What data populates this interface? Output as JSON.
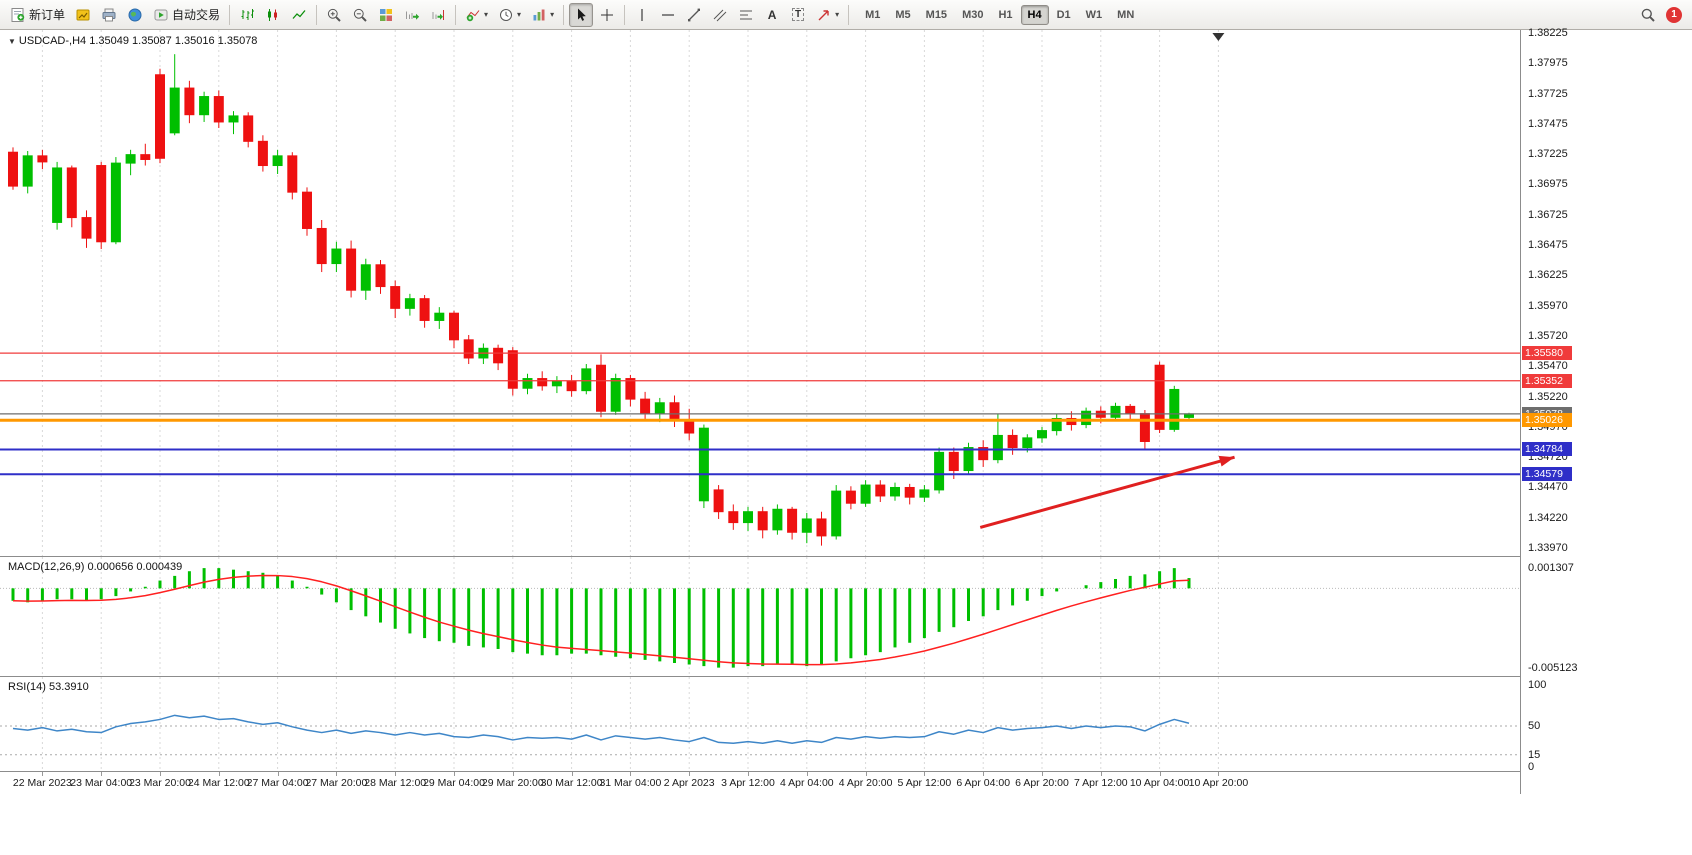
{
  "toolbar": {
    "new_order": "新订单",
    "auto_trading": "自动交易",
    "text_tool": "A",
    "label_tool": "T",
    "timeframes": [
      "M1",
      "M5",
      "M15",
      "M30",
      "H1",
      "H4",
      "D1",
      "W1",
      "MN"
    ],
    "active_timeframe": "H4",
    "notification_count": "1"
  },
  "chart": {
    "symbol_info": "USDCAD-,H4 1.35049 1.35087 1.35016 1.35078",
    "dropdown_glyph": "▼",
    "macd_label": "MACD(12,26,9) 0.000656 0.000439",
    "rsi_label": "RSI(14) 53.3910"
  },
  "chart_data": {
    "type": "candlestick",
    "symbol": "USDCAD",
    "timeframe": "H4",
    "current_ohlc": {
      "open": 1.35049,
      "high": 1.35087,
      "low": 1.35016,
      "close": 1.35078
    },
    "price_axis": {
      "top_price": 1.38225,
      "bottom_price": 1.3397,
      "ticks": [
        "1.38225",
        "1.37975",
        "1.37725",
        "1.37475",
        "1.37225",
        "1.36975",
        "1.36725",
        "1.36475",
        "1.36225",
        "1.35970",
        "1.35720",
        "1.35470",
        "1.35220",
        "1.34970",
        "1.34720",
        "1.34470",
        "1.34220",
        "1.33970"
      ]
    },
    "time_labels": [
      "22 Mar 2023",
      "23 Mar 04:00",
      "23 Mar 20:00",
      "24 Mar 12:00",
      "27 Mar 04:00",
      "27 Mar 20:00",
      "28 Mar 12:00",
      "29 Mar 04:00",
      "29 Mar 20:00",
      "30 Mar 12:00",
      "31 Mar 04:00",
      "2 Apr 2023",
      "3 Apr 12:00",
      "4 Apr 04:00",
      "4 Apr 20:00",
      "5 Apr 12:00",
      "6 Apr 04:00",
      "6 Apr 20:00",
      "7 Apr 12:00",
      "10 Apr 04:00",
      "10 Apr 20:00"
    ],
    "bars_per_label": 4,
    "first_label_bar": 2,
    "scroll_marker_bar": 82,
    "candles": [
      [
        1.3724,
        1.3728,
        1.3693,
        1.3696
      ],
      [
        1.3696,
        1.3725,
        1.369,
        1.3721
      ],
      [
        1.3721,
        1.3726,
        1.371,
        1.3716
      ],
      [
        1.3666,
        1.3716,
        1.366,
        1.3711
      ],
      [
        1.3711,
        1.3713,
        1.3662,
        1.367
      ],
      [
        1.367,
        1.3676,
        1.3645,
        1.3653
      ],
      [
        1.3713,
        1.3716,
        1.3644,
        1.365
      ],
      [
        1.365,
        1.372,
        1.3648,
        1.3715
      ],
      [
        1.3715,
        1.3726,
        1.3705,
        1.3722
      ],
      [
        1.3722,
        1.3731,
        1.3713,
        1.3718
      ],
      [
        1.3788,
        1.3793,
        1.3715,
        1.3719
      ],
      [
        1.374,
        1.3805,
        1.3738,
        1.3777
      ],
      [
        1.3777,
        1.3783,
        1.3748,
        1.3755
      ],
      [
        1.3755,
        1.3774,
        1.3749,
        1.377
      ],
      [
        1.377,
        1.3775,
        1.3744,
        1.3749
      ],
      [
        1.3749,
        1.3758,
        1.3739,
        1.3754
      ],
      [
        1.3754,
        1.3757,
        1.3728,
        1.3733
      ],
      [
        1.3733,
        1.3738,
        1.3708,
        1.3713
      ],
      [
        1.3713,
        1.3726,
        1.3706,
        1.3721
      ],
      [
        1.3721,
        1.3724,
        1.3685,
        1.3691
      ],
      [
        1.3691,
        1.3695,
        1.3655,
        1.3661
      ],
      [
        1.3661,
        1.3668,
        1.3625,
        1.3632
      ],
      [
        1.3632,
        1.365,
        1.3625,
        1.3644
      ],
      [
        1.3644,
        1.3651,
        1.3604,
        1.361
      ],
      [
        1.361,
        1.3636,
        1.3602,
        1.3631
      ],
      [
        1.3631,
        1.3635,
        1.3607,
        1.3613
      ],
      [
        1.3613,
        1.3618,
        1.3587,
        1.3595
      ],
      [
        1.3595,
        1.3607,
        1.3589,
        1.3603
      ],
      [
        1.3603,
        1.3606,
        1.3579,
        1.3585
      ],
      [
        1.3585,
        1.3596,
        1.3578,
        1.3591
      ],
      [
        1.3591,
        1.3593,
        1.3562,
        1.3569
      ],
      [
        1.3569,
        1.3573,
        1.3549,
        1.3554
      ],
      [
        1.3554,
        1.3566,
        1.3549,
        1.3562
      ],
      [
        1.3562,
        1.3565,
        1.3544,
        1.355
      ],
      [
        1.356,
        1.3563,
        1.3523,
        1.3529
      ],
      [
        1.3529,
        1.3541,
        1.3524,
        1.3537
      ],
      [
        1.3537,
        1.3543,
        1.3527,
        1.3531
      ],
      [
        1.3531,
        1.3539,
        1.3525,
        1.3535
      ],
      [
        1.3535,
        1.354,
        1.3522,
        1.3527
      ],
      [
        1.3527,
        1.3549,
        1.3524,
        1.3545
      ],
      [
        1.3548,
        1.3557,
        1.3505,
        1.351
      ],
      [
        1.351,
        1.3541,
        1.3507,
        1.3537
      ],
      [
        1.3537,
        1.354,
        1.3514,
        1.352
      ],
      [
        1.352,
        1.3526,
        1.3502,
        1.3508
      ],
      [
        1.3508,
        1.3521,
        1.3501,
        1.3517
      ],
      [
        1.3517,
        1.3523,
        1.3497,
        1.3503
      ],
      [
        1.3503,
        1.3512,
        1.3486,
        1.3492
      ],
      [
        1.3436,
        1.3499,
        1.343,
        1.3496
      ],
      [
        1.3445,
        1.3449,
        1.3421,
        1.3427
      ],
      [
        1.3427,
        1.3433,
        1.3412,
        1.3418
      ],
      [
        1.3418,
        1.3431,
        1.3411,
        1.3427
      ],
      [
        1.3427,
        1.3431,
        1.3405,
        1.3412
      ],
      [
        1.3412,
        1.3433,
        1.3408,
        1.3429
      ],
      [
        1.3429,
        1.3431,
        1.3404,
        1.341
      ],
      [
        1.341,
        1.3426,
        1.3401,
        1.3421
      ],
      [
        1.3421,
        1.3427,
        1.3399,
        1.3407
      ],
      [
        1.3407,
        1.3449,
        1.3404,
        1.3444
      ],
      [
        1.3444,
        1.3448,
        1.3429,
        1.3434
      ],
      [
        1.3434,
        1.3453,
        1.3431,
        1.3449
      ],
      [
        1.3449,
        1.3453,
        1.3435,
        1.344
      ],
      [
        1.344,
        1.3451,
        1.3436,
        1.3447
      ],
      [
        1.3447,
        1.345,
        1.3433,
        1.3439
      ],
      [
        1.3439,
        1.3449,
        1.3435,
        1.3445
      ],
      [
        1.3445,
        1.348,
        1.3442,
        1.3476
      ],
      [
        1.3476,
        1.348,
        1.3454,
        1.3461
      ],
      [
        1.3461,
        1.3484,
        1.3458,
        1.348
      ],
      [
        1.348,
        1.3486,
        1.3464,
        1.347
      ],
      [
        1.347,
        1.3508,
        1.3467,
        1.349
      ],
      [
        1.349,
        1.3495,
        1.3474,
        1.348
      ],
      [
        1.348,
        1.3491,
        1.3476,
        1.3488
      ],
      [
        1.3488,
        1.3497,
        1.3484,
        1.3494
      ],
      [
        1.3494,
        1.3508,
        1.349,
        1.3504
      ],
      [
        1.3504,
        1.351,
        1.3494,
        1.3499
      ],
      [
        1.3499,
        1.3513,
        1.3496,
        1.351
      ],
      [
        1.351,
        1.3514,
        1.35,
        1.3505
      ],
      [
        1.3505,
        1.3517,
        1.3502,
        1.3514
      ],
      [
        1.3514,
        1.3516,
        1.3503,
        1.3508
      ],
      [
        1.3508,
        1.3511,
        1.3479,
        1.3485
      ],
      [
        1.3548,
        1.3551,
        1.3492,
        1.3495
      ],
      [
        1.3495,
        1.3531,
        1.3493,
        1.3528
      ],
      [
        1.35049,
        1.35087,
        1.35016,
        1.35078
      ]
    ],
    "hlines": [
      {
        "price": 1.3558,
        "label": "1.35580",
        "color": "#f03b3b",
        "width": 1.2
      },
      {
        "price": 1.35352,
        "label": "1.35352",
        "color": "#f03b3b",
        "width": 1.2
      },
      {
        "price": 1.35078,
        "label": "1.35078",
        "color": "#6e6e6e",
        "width": 1.2
      },
      {
        "price": 1.35026,
        "label": "1.35026",
        "color": "#ff9800",
        "width": 3
      },
      {
        "price": 1.34784,
        "label": "1.34784",
        "color": "#2f2fc8",
        "width": 2
      },
      {
        "price": 1.34579,
        "label": "1.34579",
        "color": "#2f2fc8",
        "width": 2
      }
    ],
    "trend_arrow": {
      "from_bar": 65.8,
      "from_price": 1.3414,
      "to_bar": 83.1,
      "to_price": 1.3472,
      "color": "#e02020"
    },
    "macd": {
      "name": "MACD(12,26,9)",
      "main_value": 0.000656,
      "signal_value": 0.000439,
      "signal_period": 9,
      "scale": [
        {
          "v": 0.001307,
          "label": "0.001307"
        },
        {
          "v": -0.005123,
          "label": "-0.005123"
        }
      ],
      "hist_color": "#00bf00",
      "signal_color": "#ff2020",
      "values": [
        -0.0008,
        -0.0009,
        -0.0008,
        -0.0007,
        -0.0007,
        -0.0008,
        -0.0007,
        -0.0005,
        -0.0002,
        0.0001,
        0.0005,
        0.0008,
        0.0011,
        0.0013,
        0.0013,
        0.0012,
        0.0011,
        0.001,
        0.0008,
        0.0005,
        0.0001,
        -0.0004,
        -0.0009,
        -0.0014,
        -0.0018,
        -0.0022,
        -0.0026,
        -0.0029,
        -0.0032,
        -0.0034,
        -0.0035,
        -0.0037,
        -0.0038,
        -0.0039,
        -0.0041,
        -0.0042,
        -0.0043,
        -0.0043,
        -0.0042,
        -0.0042,
        -0.0043,
        -0.0044,
        -0.0045,
        -0.0046,
        -0.0047,
        -0.0048,
        -0.0049,
        -0.005,
        -0.0051,
        -0.0051,
        -0.005,
        -0.005,
        -0.0049,
        -0.0049,
        -0.005,
        -0.0049,
        -0.0047,
        -0.0045,
        -0.0043,
        -0.0041,
        -0.0038,
        -0.0035,
        -0.0032,
        -0.0028,
        -0.0025,
        -0.0021,
        -0.0018,
        -0.0014,
        -0.0011,
        -0.0008,
        -0.0005,
        -0.0002,
        0.0,
        0.0002,
        0.0004,
        0.0006,
        0.0008,
        0.0009,
        0.0011,
        0.0013,
        0.00066
      ]
    },
    "rsi": {
      "name": "RSI(14)",
      "current": 53.391,
      "color": "#3e86c8",
      "scale": [
        {
          "v": 100,
          "label": "100"
        },
        {
          "v": 50,
          "label": "50"
        },
        {
          "v": 15,
          "label": "15"
        },
        {
          "v": 0,
          "label": "0"
        }
      ],
      "levels": [
        50,
        15
      ],
      "values": [
        47,
        45,
        48,
        44,
        46,
        43,
        42,
        49,
        53,
        55,
        58,
        63,
        60,
        62,
        58,
        59,
        55,
        52,
        54,
        49,
        45,
        42,
        45,
        41,
        44,
        42,
        39,
        42,
        39,
        41,
        37,
        36,
        39,
        37,
        33,
        36,
        35,
        36,
        34,
        39,
        33,
        38,
        36,
        34,
        36,
        33,
        31,
        36,
        30,
        29,
        31,
        29,
        32,
        29,
        32,
        30,
        36,
        34,
        37,
        35,
        37,
        36,
        37,
        43,
        40,
        45,
        42,
        48,
        45,
        47,
        48,
        50,
        47,
        50,
        48,
        50,
        49,
        44,
        52,
        58,
        53.39
      ]
    },
    "colors": {
      "up": "#00bf00",
      "down": "#ee1111",
      "grid": "#d9d9d9"
    }
  }
}
